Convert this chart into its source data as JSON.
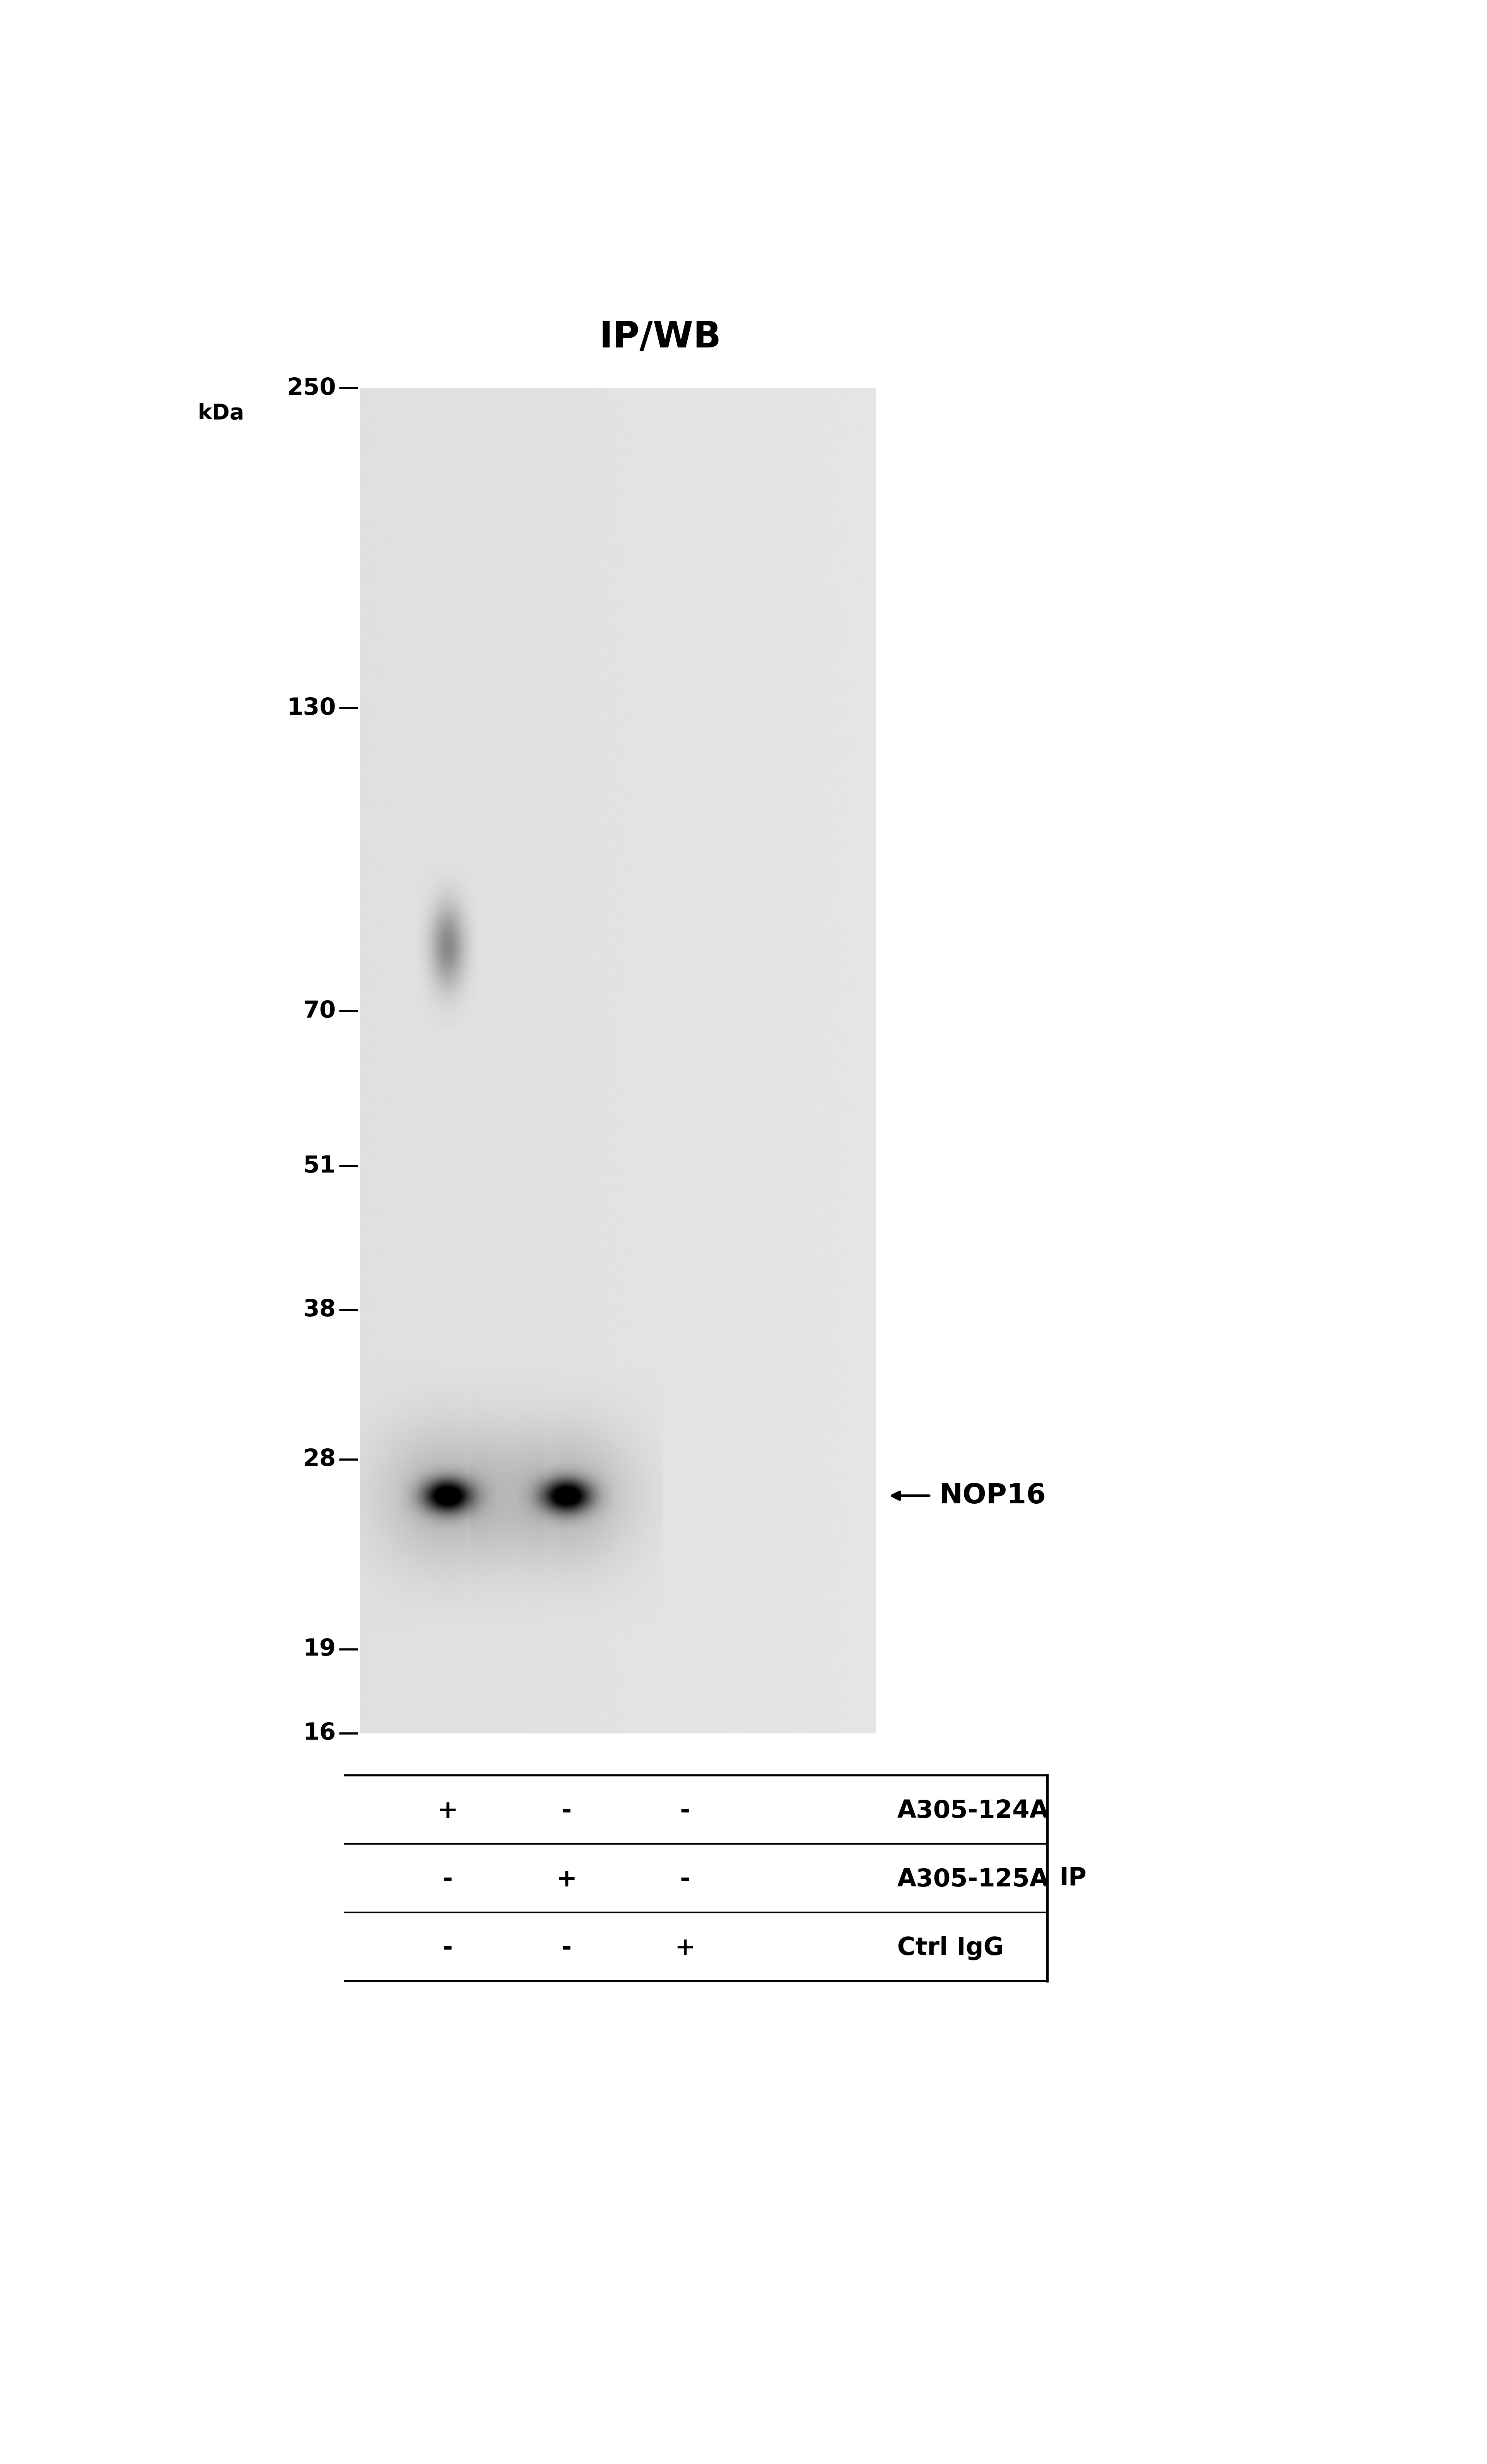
{
  "title": "IP/WB",
  "background_color": "#ffffff",
  "gel_bg_color_light": "#e0e0e0",
  "gel_bg_color_dark": "#c8c8c8",
  "title_fontsize": 68,
  "kda_label": "kDa",
  "marker_labels": [
    "250",
    "130",
    "70",
    "51",
    "38",
    "28",
    "19",
    "16"
  ],
  "marker_kda": [
    250,
    130,
    70,
    51,
    38,
    28,
    19,
    16
  ],
  "nop16_label": "NOP16",
  "row_labels": [
    "A305-124A",
    "A305-125A",
    "Ctrl IgG"
  ],
  "ip_label": "IP",
  "signs": [
    [
      "+",
      "-",
      "-"
    ],
    [
      "-",
      "+",
      "-"
    ],
    [
      "-",
      "-",
      "+"
    ]
  ],
  "font_size_markers": 44,
  "font_size_table": 46,
  "font_size_ip": 46,
  "font_size_nop16": 52,
  "font_size_title": 68,
  "font_size_kda": 40
}
